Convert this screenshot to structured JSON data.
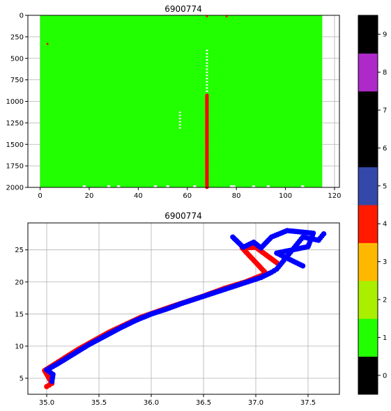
{
  "chart_data": [
    {
      "type": "heatmap",
      "title": "6900774",
      "xlabel": "",
      "ylabel": "",
      "xlim": [
        -5,
        122
      ],
      "ylim": [
        2000,
        0
      ],
      "y_inverted": true,
      "grid": true,
      "x_ticks": [
        "0",
        "20",
        "40",
        "60",
        "80",
        "100",
        "120"
      ],
      "y_ticks": [
        "0",
        "250",
        "500",
        "750",
        "1000",
        "1250",
        "1500",
        "1750",
        "2000"
      ],
      "profile_range": [
        0,
        115
      ],
      "depth_range": [
        0,
        2000
      ],
      "dominant_flag": 1,
      "flag4_profile": {
        "profile": 68,
        "depth_from": 930,
        "depth_to": 2000
      },
      "flag4_points": [
        {
          "profile": 3,
          "depth": 320
        },
        {
          "profile": 76,
          "depth": 0
        },
        {
          "profile": 68,
          "depth": 0
        }
      ],
      "missing_columns": [
        {
          "profile": 57,
          "depth_from": 1120,
          "depth_to": 1330
        },
        {
          "profile": 68,
          "depth_from": 400,
          "depth_to": 900
        }
      ],
      "missing_bottom_points": [
        18,
        28,
        32,
        47,
        52,
        63,
        78,
        79,
        87,
        93,
        107
      ]
    },
    {
      "type": "scatter",
      "title": "6900774",
      "xlabel": "",
      "ylabel": "",
      "xlim": [
        34.82,
        37.8
      ],
      "ylim": [
        2.5,
        29.2
      ],
      "grid": true,
      "x_ticks": [
        "35.0",
        "35.5",
        "36.0",
        "36.5",
        "37.0",
        "37.5"
      ],
      "y_ticks": [
        "5",
        "10",
        "15",
        "20",
        "25"
      ],
      "series": [
        {
          "color": "#ff0000",
          "points": [
            [
              35.0,
              3.7
            ],
            [
              35.05,
              4.2
            ],
            [
              34.98,
              6.2
            ],
            [
              35.3,
              9.5
            ],
            [
              35.6,
              12.2
            ],
            [
              35.9,
              14.5
            ],
            [
              36.2,
              16.2
            ],
            [
              36.5,
              17.8
            ],
            [
              36.7,
              19.0
            ],
            [
              36.9,
              20.0
            ],
            [
              37.1,
              21.3
            ],
            [
              36.87,
              25.3
            ],
            [
              37.0,
              25.4
            ],
            [
              37.2,
              23.0
            ]
          ]
        },
        {
          "color": "#0000ff",
          "points": [
            [
              35.05,
              4.5
            ],
            [
              35.06,
              5.6
            ],
            [
              35.0,
              6.3
            ],
            [
              35.1,
              7.2
            ],
            [
              35.25,
              8.7
            ],
            [
              35.4,
              10.2
            ],
            [
              35.55,
              11.5
            ],
            [
              35.7,
              12.8
            ],
            [
              35.85,
              14.0
            ],
            [
              36.0,
              15.0
            ],
            [
              36.15,
              15.8
            ],
            [
              36.3,
              16.7
            ],
            [
              36.45,
              17.5
            ],
            [
              36.6,
              18.3
            ],
            [
              36.75,
              19.1
            ],
            [
              36.9,
              19.9
            ],
            [
              37.05,
              20.7
            ],
            [
              37.15,
              21.5
            ],
            [
              37.2,
              22.0
            ],
            [
              37.25,
              23.0
            ],
            [
              37.3,
              24.0
            ],
            [
              37.35,
              25.0
            ],
            [
              37.4,
              26.0
            ],
            [
              37.45,
              27.0
            ],
            [
              37.6,
              26.5
            ],
            [
              37.65,
              27.5
            ],
            [
              36.78,
              27.0
            ],
            [
              36.88,
              25.4
            ],
            [
              36.98,
              26.2
            ],
            [
              37.05,
              25.3
            ],
            [
              37.15,
              27.0
            ],
            [
              37.3,
              28.0
            ],
            [
              37.55,
              27.6
            ],
            [
              37.5,
              25.5
            ],
            [
              37.2,
              24.5
            ],
            [
              37.45,
              22.5
            ]
          ]
        }
      ]
    },
    {
      "type": "colorbar",
      "ticks": [
        "0",
        "1",
        "2",
        "3",
        "4",
        "5",
        "6",
        "7",
        "8",
        "9"
      ],
      "colors": [
        "#000000",
        "#22ff00",
        "#aaee00",
        "#ffb800",
        "#ff1a00",
        "#3448aa",
        "#000000",
        "#000000",
        "#ae2ac8",
        "#000000"
      ]
    }
  ]
}
